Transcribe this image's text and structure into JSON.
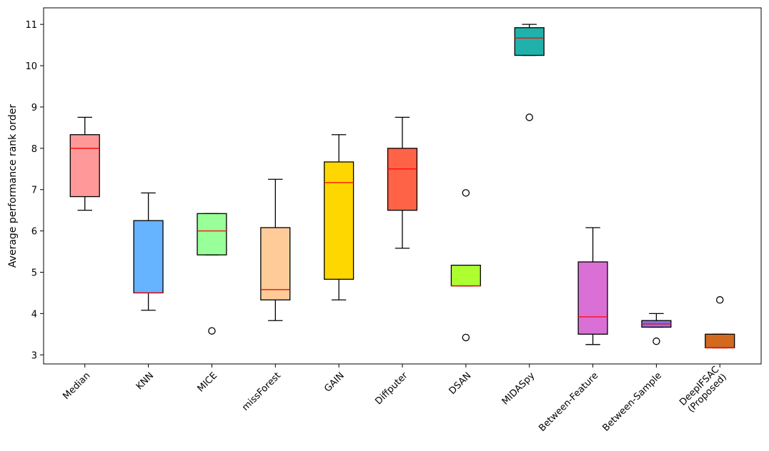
{
  "chart_data": {
    "type": "boxplot",
    "title": "",
    "xlabel": "",
    "ylabel": "Average performance rank order",
    "ylim": [
      2.78,
      11.4
    ],
    "yticks": [
      3,
      4,
      5,
      6,
      7,
      8,
      9,
      10,
      11
    ],
    "grid": false,
    "categories": [
      {
        "label": [
          "Median"
        ],
        "color": "#ff9999",
        "whisker_low": 6.5,
        "q1": 6.83,
        "median": 8.0,
        "q3": 8.33,
        "whisker_high": 8.75,
        "outliers": []
      },
      {
        "label": [
          "KNN"
        ],
        "color": "#66b3ff",
        "whisker_low": 4.08,
        "q1": 4.5,
        "median": 4.5,
        "q3": 6.25,
        "whisker_high": 6.92,
        "outliers": []
      },
      {
        "label": [
          "MICE"
        ],
        "color": "#99ff99",
        "whisker_low": 5.42,
        "q1": 5.42,
        "median": 6.0,
        "q3": 6.42,
        "whisker_high": 6.42,
        "outliers": [
          3.58
        ]
      },
      {
        "label": [
          "missForest"
        ],
        "color": "#ffcc99",
        "whisker_low": 3.83,
        "q1": 4.33,
        "median": 4.58,
        "q3": 6.08,
        "whisker_high": 7.25,
        "outliers": []
      },
      {
        "label": [
          "GAIN"
        ],
        "color": "#ffd700",
        "whisker_low": 4.33,
        "q1": 4.83,
        "median": 7.17,
        "q3": 7.67,
        "whisker_high": 8.33,
        "outliers": []
      },
      {
        "label": [
          "Diffputer"
        ],
        "color": "#ff6347",
        "whisker_low": 5.58,
        "q1": 6.5,
        "median": 7.5,
        "q3": 8.0,
        "whisker_high": 8.75,
        "outliers": []
      },
      {
        "label": [
          "DSAN"
        ],
        "color": "#adff2f",
        "whisker_low": 4.67,
        "q1": 4.67,
        "median": 4.67,
        "q3": 5.17,
        "whisker_high": 5.17,
        "outliers": [
          6.92,
          3.42
        ]
      },
      {
        "label": [
          "MIDASpy"
        ],
        "color": "#20b2aa",
        "whisker_low": 10.25,
        "q1": 10.25,
        "median": 10.67,
        "q3": 10.92,
        "whisker_high": 11.0,
        "outliers": [
          8.75
        ]
      },
      {
        "label": [
          "Between-Feature"
        ],
        "color": "#da70d6",
        "whisker_low": 3.25,
        "q1": 3.5,
        "median": 3.92,
        "q3": 5.25,
        "whisker_high": 6.08,
        "outliers": []
      },
      {
        "label": [
          "Between-Sample"
        ],
        "color": "#9370db",
        "whisker_low": 3.67,
        "q1": 3.67,
        "median": 3.75,
        "q3": 3.83,
        "whisker_high": 4.0,
        "outliers": [
          3.33
        ]
      },
      {
        "label": [
          "DeepIFSAC",
          "(Proposed)"
        ],
        "color": "#d2691e",
        "whisker_low": 3.17,
        "q1": 3.17,
        "median": 3.17,
        "q3": 3.5,
        "whisker_high": 3.5,
        "outliers": [
          4.33
        ]
      }
    ],
    "median_color": "#ff0000",
    "box_edge_color": "#000000"
  }
}
